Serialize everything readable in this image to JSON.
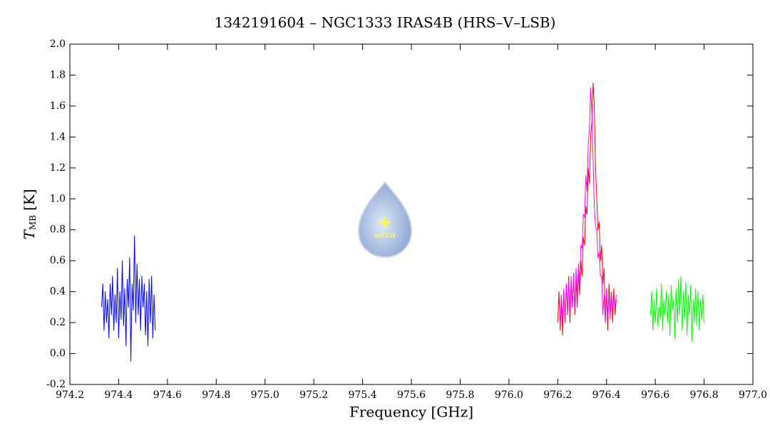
{
  "chart_data": {
    "type": "line",
    "title": "1342191604 – NGC1333 IRAS4B (HRS–V–LSB)",
    "xlabel": "Frequency [GHz]",
    "ylabel": {
      "symbol": "T",
      "subscript": "MB",
      "unit": "[K]"
    },
    "watermark": "WISH",
    "xlim": [
      974.2,
      977.0
    ],
    "ylim": [
      -0.2,
      2.0
    ],
    "xticks": [
      974.2,
      974.4,
      974.6,
      974.8,
      {
        "value": 975,
        "label": "975.0"
      },
      975.2,
      975.4,
      975.6,
      975.8,
      {
        "value": 976,
        "label": "976.0"
      },
      976.2,
      976.4,
      976.6,
      976.8,
      {
        "value": 977,
        "label": "977.0"
      }
    ],
    "yticks": [
      -0.2,
      {
        "value": 0,
        "label": "0.0"
      },
      0.2,
      0.4,
      0.6,
      0.8,
      {
        "value": 1,
        "label": "1.0"
      },
      1.2,
      1.4,
      1.6,
      1.8,
      {
        "value": 2,
        "label": "2.0"
      }
    ],
    "series": [
      {
        "color": "#0000ff",
        "x": [
          974.33,
          974.335,
          974.34,
          974.345,
          974.35,
          974.355,
          974.36,
          974.365,
          974.37,
          974.375,
          974.38,
          974.385,
          974.39,
          974.395,
          974.4,
          974.405,
          974.41,
          974.415,
          974.42,
          974.425,
          974.43,
          974.435,
          974.44,
          974.445,
          974.45,
          974.455,
          974.46,
          974.465,
          974.47,
          974.475,
          974.48,
          974.485,
          974.49,
          974.495,
          974.5,
          974.505,
          974.51,
          974.515,
          974.52,
          974.525,
          974.53,
          974.535,
          974.54,
          974.545,
          974.55
        ],
        "values": [
          0.3,
          0.45,
          0.15,
          0.4,
          0.2,
          0.35,
          0.1,
          0.45,
          0.25,
          0.5,
          0.15,
          0.38,
          0.2,
          0.55,
          0.1,
          0.4,
          0.22,
          0.6,
          0.18,
          0.42,
          0.05,
          0.48,
          0.3,
          0.62,
          -0.05,
          0.45,
          0.28,
          0.76,
          0.2,
          0.58,
          0.25,
          0.48,
          0.15,
          0.5,
          0.3,
          0.45,
          0.12,
          0.4,
          0.05,
          0.48,
          0.2,
          0.5,
          0.1,
          0.38,
          0.15
        ]
      },
      {
        "color": "#ff0000",
        "x": [
          976.2,
          976.205,
          976.21,
          976.215,
          976.22,
          976.225,
          976.23,
          976.235,
          976.24,
          976.245,
          976.25,
          976.255,
          976.26,
          976.265,
          976.27,
          976.275,
          976.28,
          976.285,
          976.29,
          976.295,
          976.3,
          976.305,
          976.31,
          976.315,
          976.32,
          976.325,
          976.33,
          976.335,
          976.34,
          976.345,
          976.35,
          976.355,
          976.36,
          976.365,
          976.37,
          976.375,
          976.38,
          976.385,
          976.39,
          976.395,
          976.4,
          976.405,
          976.41,
          976.415,
          976.42,
          976.425,
          976.43,
          976.435,
          976.44
        ],
        "values": [
          0.2,
          0.4,
          0.15,
          0.35,
          0.12,
          0.4,
          0.2,
          0.45,
          0.25,
          0.5,
          0.2,
          0.45,
          0.3,
          0.5,
          0.25,
          0.48,
          0.3,
          0.55,
          0.38,
          0.6,
          0.5,
          0.75,
          0.7,
          0.95,
          0.9,
          1.2,
          1.1,
          1.4,
          1.5,
          1.75,
          1.6,
          1.2,
          1.0,
          0.8,
          0.85,
          0.6,
          0.7,
          0.45,
          0.55,
          0.2,
          0.4,
          0.15,
          0.45,
          0.25,
          0.4,
          0.2,
          0.42,
          0.25,
          0.35
        ]
      },
      {
        "color": "#ff00ff",
        "x": [
          976.21,
          976.215,
          976.22,
          976.225,
          976.23,
          976.235,
          976.24,
          976.245,
          976.25,
          976.255,
          976.26,
          976.265,
          976.27,
          976.275,
          976.28,
          976.285,
          976.29,
          976.295,
          976.3,
          976.305,
          976.31,
          976.315,
          976.32,
          976.325,
          976.33,
          976.335,
          976.34,
          976.345,
          976.35,
          976.355,
          976.36,
          976.365,
          976.37,
          976.375,
          976.38,
          976.385,
          976.39,
          976.395,
          976.4,
          976.405,
          976.41,
          976.415,
          976.42,
          976.425,
          976.43,
          976.435,
          976.44
        ],
        "values": [
          0.18,
          0.38,
          0.2,
          0.42,
          0.22,
          0.45,
          0.28,
          0.48,
          0.25,
          0.5,
          0.3,
          0.52,
          0.28,
          0.55,
          0.35,
          0.58,
          0.45,
          0.7,
          0.68,
          0.9,
          0.88,
          1.15,
          1.05,
          1.35,
          1.45,
          1.72,
          1.55,
          1.25,
          0.95,
          0.82,
          0.8,
          0.62,
          0.65,
          0.5,
          0.5,
          0.25,
          0.38,
          0.2,
          0.42,
          0.25,
          0.38,
          0.22,
          0.4,
          0.28,
          0.35,
          0.3,
          0.38
        ]
      },
      {
        "color": "#00ff00",
        "x": [
          976.58,
          976.585,
          976.59,
          976.595,
          976.6,
          976.605,
          976.61,
          976.615,
          976.62,
          976.625,
          976.63,
          976.635,
          976.64,
          976.645,
          976.65,
          976.655,
          976.66,
          976.665,
          976.67,
          976.675,
          976.68,
          976.685,
          976.69,
          976.695,
          976.7,
          976.705,
          976.71,
          976.715,
          976.72,
          976.725,
          976.73,
          976.735,
          976.74,
          976.745,
          976.75,
          976.755,
          976.76,
          976.765,
          976.77,
          976.775,
          976.78,
          976.785,
          976.79,
          976.795,
          976.8
        ],
        "values": [
          0.25,
          0.4,
          0.15,
          0.35,
          0.2,
          0.42,
          0.18,
          0.3,
          0.22,
          0.45,
          0.15,
          0.35,
          0.25,
          0.4,
          0.2,
          0.38,
          0.12,
          0.44,
          0.28,
          0.35,
          0.1,
          0.42,
          0.2,
          0.48,
          0.25,
          0.5,
          0.15,
          0.4,
          0.22,
          0.46,
          0.12,
          0.38,
          0.25,
          0.44,
          0.08,
          0.35,
          0.2,
          0.42,
          0.18,
          0.4,
          0.15,
          0.35,
          0.22,
          0.38,
          0.2
        ]
      }
    ]
  }
}
